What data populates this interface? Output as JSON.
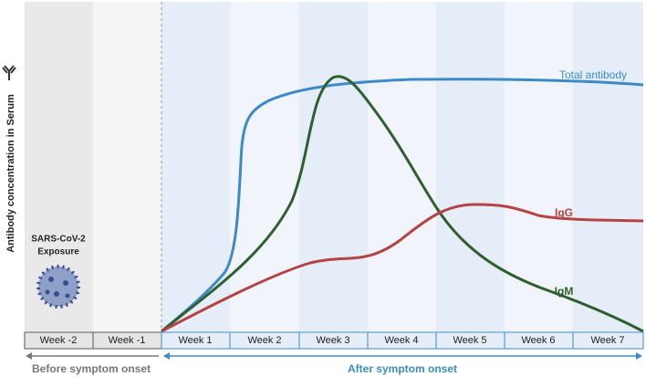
{
  "y_axis_label": "Antibody concentration in Serum",
  "exposure": [
    "SARS-CoV-2",
    "Exposure"
  ],
  "weeks": [
    "Week -2",
    "Week -1",
    "Week 1",
    "Week 2",
    "Week 3",
    "Week 4",
    "Week 5",
    "Week 6",
    "Week 7"
  ],
  "curve_labels": {
    "total": "Total antibody",
    "igg": "IgG",
    "igm": "IgM"
  },
  "phases": {
    "before": "Before symptom onset",
    "after": "After symptom onset"
  }
}
